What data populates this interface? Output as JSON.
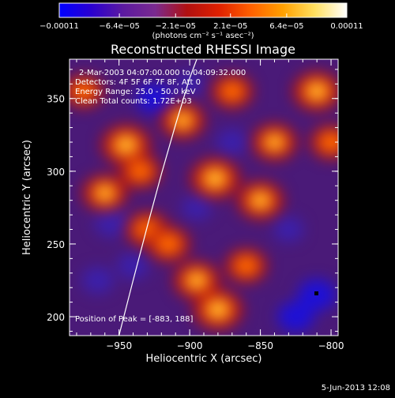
{
  "chart_data": {
    "type": "heatmap",
    "title": "Reconstructed RHESSI Image",
    "xlabel": "Heliocentric X (arcsec)",
    "ylabel": "Heliocentric Y (arcsec)",
    "xlim": [
      -985,
      -795
    ],
    "ylim": [
      187,
      377
    ],
    "x_ticks": [
      -950,
      -900,
      -850,
      -800
    ],
    "x_tick_labels": [
      "−950",
      "−900",
      "−850",
      "−800"
    ],
    "y_ticks": [
      200,
      250,
      300,
      350
    ],
    "y_tick_labels": [
      "200",
      "250",
      "300",
      "350"
    ],
    "colorbar": {
      "min": -0.00011,
      "max": 0.00011,
      "ticks": [
        -0.00011,
        -6.4e-05,
        -2.1e-05,
        2.1e-05,
        6.4e-05,
        0.00011
      ],
      "tick_labels": [
        "−0.00011",
        "−6.4e−05",
        "−2.1e−05",
        "2.1e−05",
        "6.4e−05",
        "0.00011"
      ],
      "units": "(photons cm⁻² s⁻¹ asec⁻²)",
      "colormap": [
        "#0000ff",
        "#2a00d0",
        "#5c1aa0",
        "#7a2a90",
        "#b01010",
        "#e02000",
        "#ff6000",
        "#ffa000",
        "#ffe060",
        "#ffffff"
      ]
    },
    "info_lines": [
      "2-Mar-2003 04:07:00.000 to 04:09:32.000",
      "Detectors: 4F 5F 6F 7F 8F, Att 0",
      "Energy Range: 25.0 - 50.0 keV",
      "Clean     Total counts: 1.72E+03"
    ],
    "peak_text": "Position of Peak = [-883, 188]",
    "limb_curve": [
      [
        -950,
        187
      ],
      [
        -940,
        225
      ],
      [
        -930,
        262
      ],
      [
        -920,
        298
      ],
      [
        -910,
        332
      ],
      [
        -900,
        364
      ],
      [
        -895,
        377
      ]
    ],
    "hot_spots": [
      {
        "x": -945,
        "y": 318,
        "v": 1.0
      },
      {
        "x": -905,
        "y": 335,
        "v": 0.7
      },
      {
        "x": -882,
        "y": 295,
        "v": 1.0
      },
      {
        "x": -850,
        "y": 280,
        "v": 0.8
      },
      {
        "x": -840,
        "y": 320,
        "v": 0.7
      },
      {
        "x": -810,
        "y": 355,
        "v": 0.9
      },
      {
        "x": -800,
        "y": 320,
        "v": 0.5
      },
      {
        "x": -930,
        "y": 260,
        "v": 0.6
      },
      {
        "x": -960,
        "y": 285,
        "v": 0.7
      },
      {
        "x": -895,
        "y": 225,
        "v": 0.8
      },
      {
        "x": -880,
        "y": 205,
        "v": 1.0
      },
      {
        "x": -915,
        "y": 250,
        "v": 0.6
      },
      {
        "x": -860,
        "y": 235,
        "v": 0.5
      },
      {
        "x": -935,
        "y": 300,
        "v": 0.5
      },
      {
        "x": -975,
        "y": 355,
        "v": 0.4
      },
      {
        "x": -870,
        "y": 355,
        "v": 0.5
      }
    ],
    "cold_spots": [
      {
        "x": -955,
        "y": 265,
        "v": 0.8
      },
      {
        "x": -925,
        "y": 350,
        "v": 0.9
      },
      {
        "x": -810,
        "y": 215,
        "v": 1.0
      },
      {
        "x": -825,
        "y": 200,
        "v": 0.9
      },
      {
        "x": -870,
        "y": 320,
        "v": 0.6
      },
      {
        "x": -940,
        "y": 235,
        "v": 0.6
      },
      {
        "x": -830,
        "y": 260,
        "v": 0.5
      },
      {
        "x": -965,
        "y": 225,
        "v": 0.6
      },
      {
        "x": -895,
        "y": 275,
        "v": 0.5
      },
      {
        "x": -900,
        "y": 360,
        "v": 0.4
      }
    ]
  },
  "footer": {
    "date": "5-Jun-2013 12:08"
  }
}
